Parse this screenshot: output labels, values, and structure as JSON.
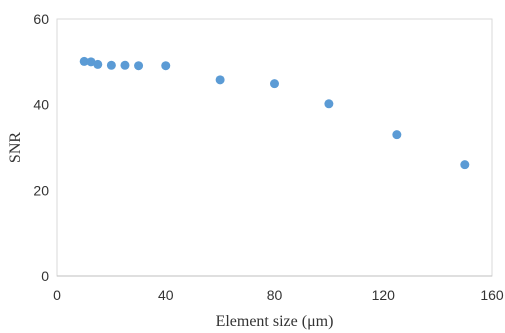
{
  "chart_data": {
    "type": "scatter",
    "title": "",
    "xlabel": "Element size (μm)",
    "ylabel": "SNR",
    "xlim": [
      0,
      160
    ],
    "ylim": [
      0,
      60
    ],
    "x_ticks": [
      0,
      40,
      80,
      120,
      160
    ],
    "y_ticks": [
      0,
      20,
      40,
      60
    ],
    "x_tick_labels": [
      "0",
      "40",
      "80",
      "120",
      "160"
    ],
    "y_tick_labels": [
      "0",
      "20",
      "40",
      "60"
    ],
    "grid": false,
    "legend": "none",
    "series": [
      {
        "x": [
          10,
          12.5,
          15,
          20,
          25,
          30,
          40,
          60,
          80,
          100,
          125,
          150
        ],
        "y": [
          50.1,
          50.0,
          49.4,
          49.2,
          49.2,
          49.1,
          49.1,
          45.8,
          44.9,
          40.2,
          33.0,
          26.0
        ],
        "color": "#5B9BD5"
      }
    ]
  }
}
